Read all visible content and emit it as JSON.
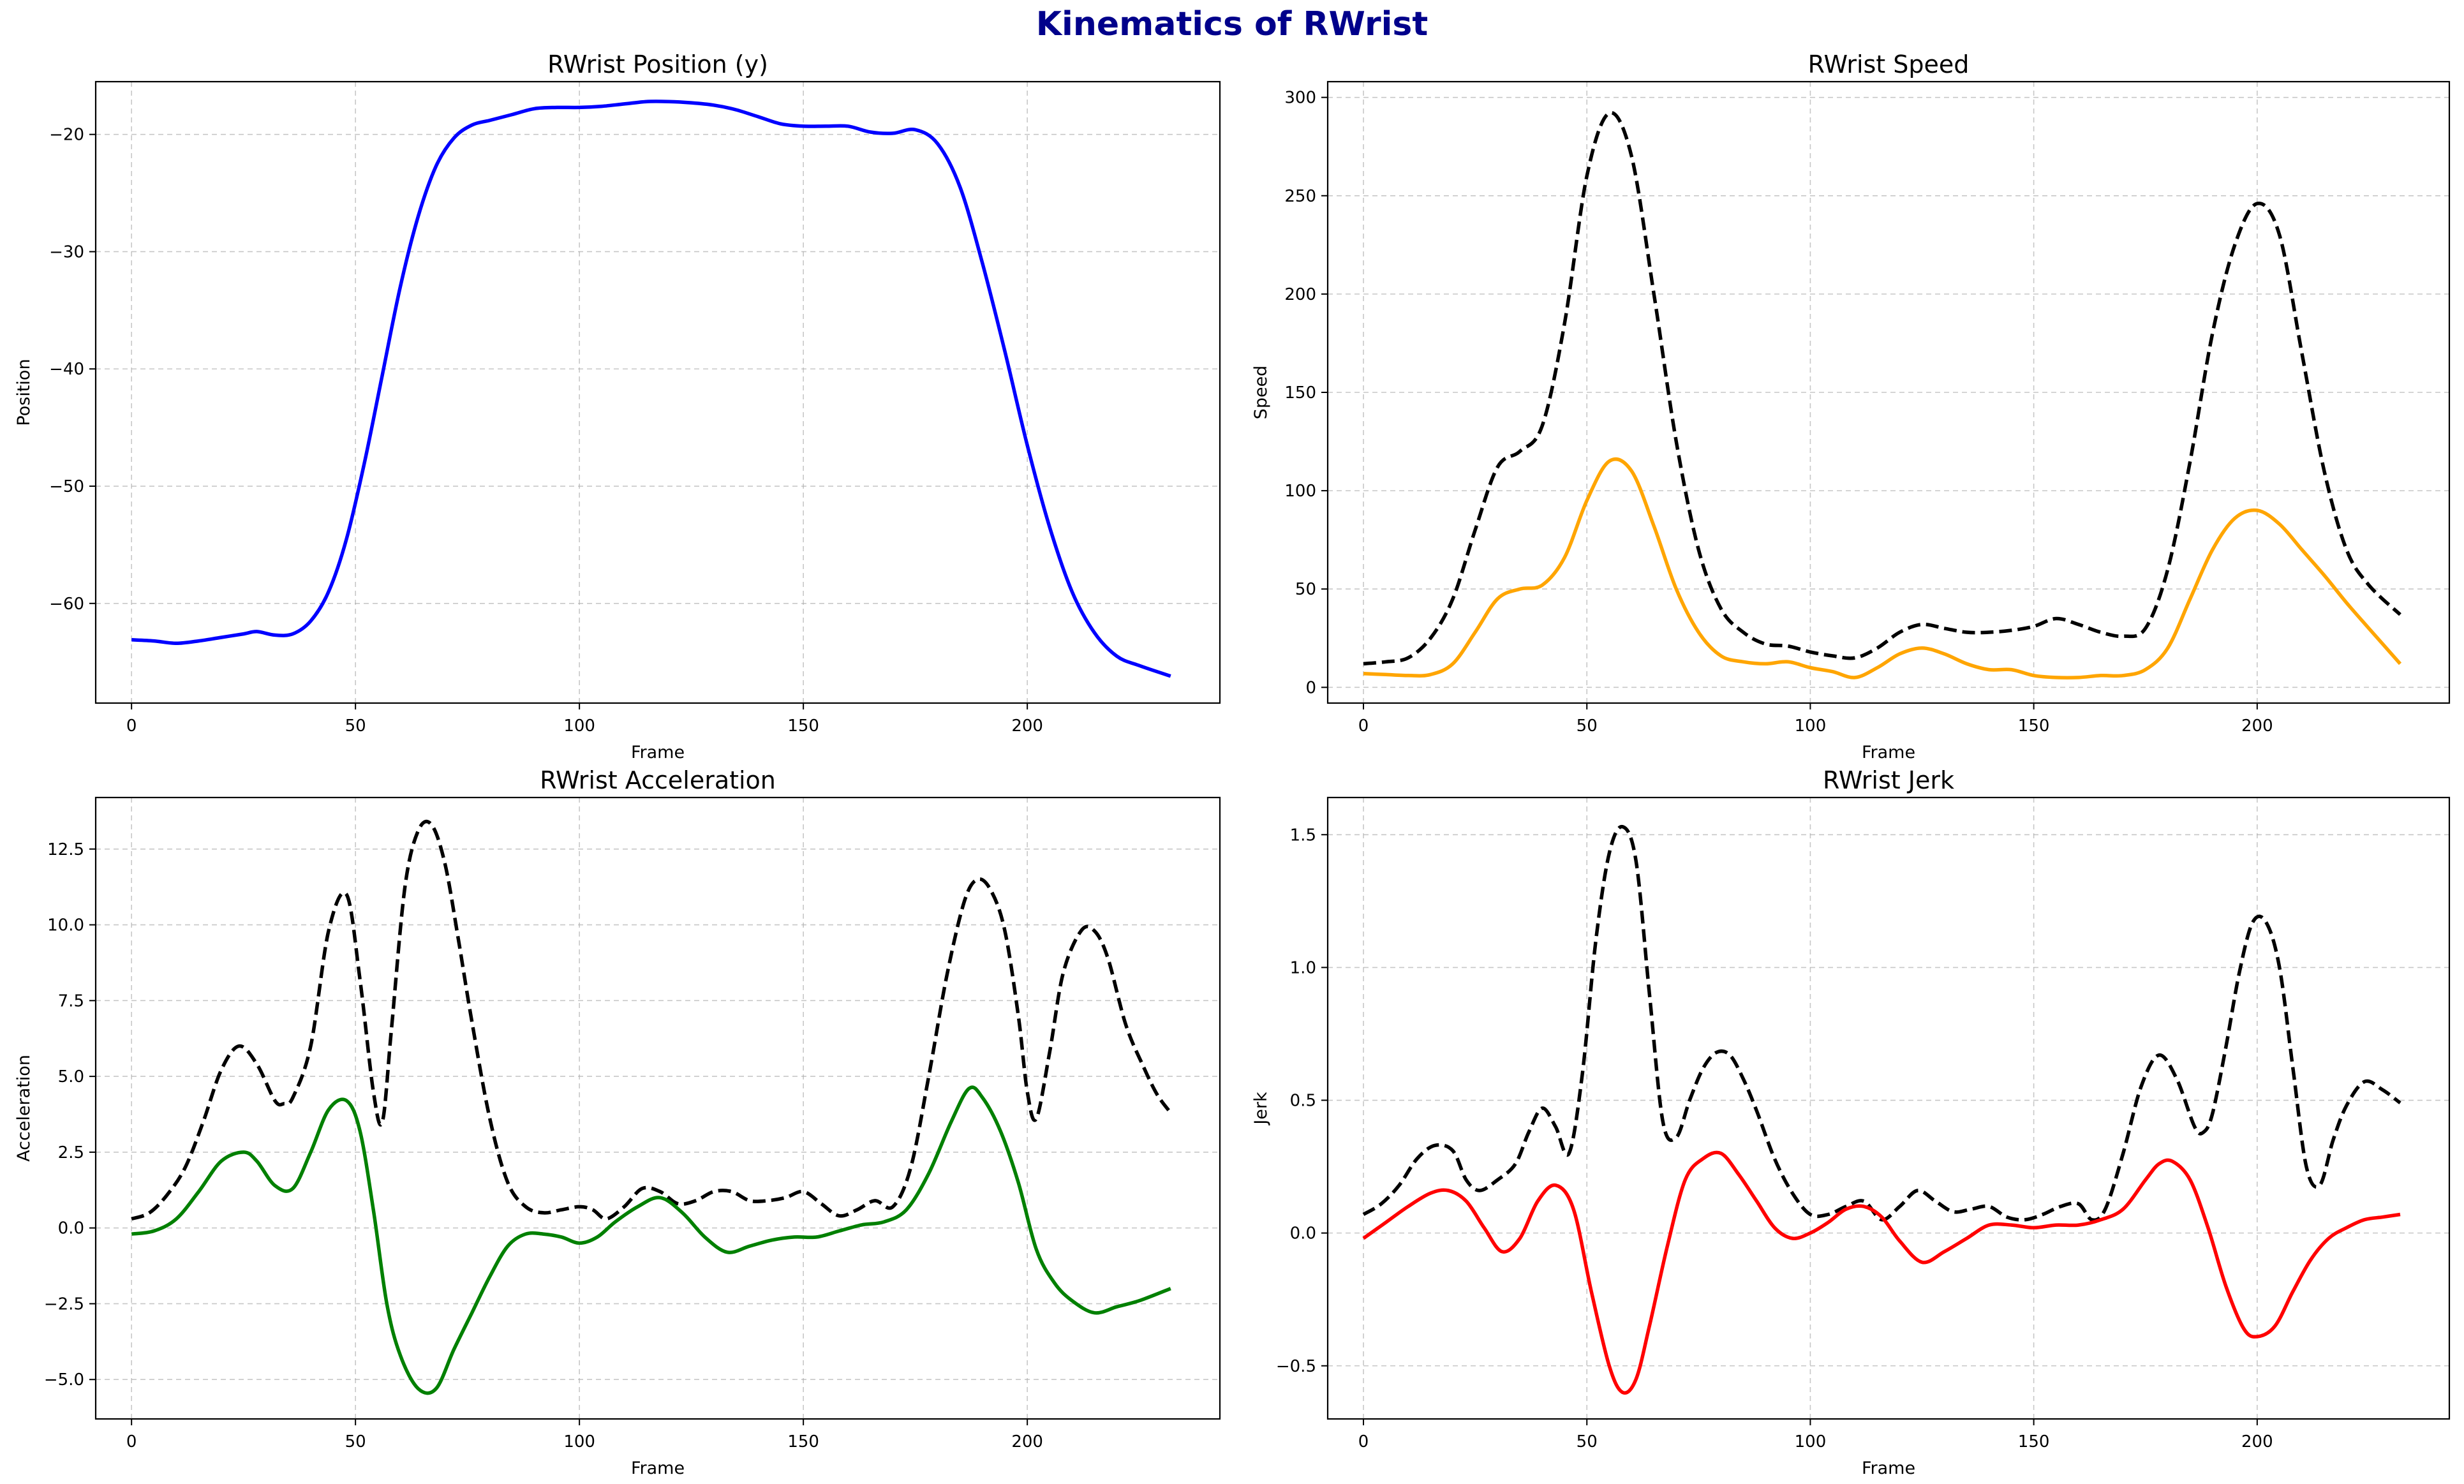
{
  "figure": {
    "suptitle": "Kinematics of RWrist",
    "suptitle_color": "#00008b"
  },
  "chart_data": [
    {
      "type": "line",
      "title": "RWrist Position (y)",
      "xlabel": "Frame",
      "ylabel": "Position",
      "xlim": [
        -8,
        243
      ],
      "ylim": [
        -68.5,
        -15.5
      ],
      "xticks": [
        0,
        50,
        100,
        150,
        200
      ],
      "yticks": [
        -60,
        -50,
        -40,
        -30,
        -20
      ],
      "grid": true,
      "series": [
        {
          "color": "#0000ff",
          "dashed": false,
          "x": [
            0,
            5,
            10,
            15,
            20,
            25,
            28,
            32,
            36,
            40,
            44,
            48,
            52,
            56,
            60,
            64,
            68,
            72,
            76,
            80,
            85,
            90,
            95,
            100,
            105,
            110,
            115,
            120,
            125,
            130,
            135,
            140,
            145,
            150,
            155,
            160,
            165,
            170,
            175,
            180,
            185,
            190,
            195,
            200,
            205,
            210,
            215,
            220,
            225,
            232
          ],
          "y": [
            -63.1,
            -63.2,
            -63.4,
            -63.2,
            -62.9,
            -62.6,
            -62.4,
            -62.7,
            -62.6,
            -61.5,
            -59,
            -54.5,
            -48,
            -40.5,
            -33,
            -27,
            -22.7,
            -20.3,
            -19.2,
            -18.8,
            -18.3,
            -17.8,
            -17.7,
            -17.7,
            -17.6,
            -17.4,
            -17.2,
            -17.2,
            -17.3,
            -17.5,
            -17.9,
            -18.5,
            -19.1,
            -19.3,
            -19.3,
            -19.3,
            -19.8,
            -19.9,
            -19.6,
            -20.8,
            -24.5,
            -31,
            -38.5,
            -46.5,
            -53.5,
            -59,
            -62.5,
            -64.5,
            -65.3,
            -66.2
          ]
        }
      ]
    },
    {
      "type": "line",
      "title": "RWrist Speed",
      "xlabel": "Frame",
      "ylabel": "Speed",
      "xlim": [
        -8,
        243
      ],
      "ylim": [
        -8,
        308
      ],
      "xticks": [
        0,
        50,
        100,
        150,
        200
      ],
      "yticks": [
        0,
        50,
        100,
        150,
        200,
        250,
        300
      ],
      "grid": true,
      "series": [
        {
          "color": "#000000",
          "dashed": true,
          "x": [
            0,
            5,
            10,
            15,
            20,
            25,
            30,
            35,
            40,
            45,
            50,
            55,
            60,
            65,
            70,
            75,
            80,
            85,
            90,
            95,
            100,
            105,
            110,
            115,
            120,
            125,
            130,
            135,
            140,
            145,
            150,
            155,
            160,
            165,
            170,
            175,
            180,
            185,
            190,
            195,
            200,
            205,
            210,
            215,
            220,
            225,
            232
          ],
          "y": [
            12,
            13,
            15,
            25,
            45,
            80,
            112,
            120,
            133,
            185,
            260,
            292,
            270,
            200,
            125,
            70,
            40,
            28,
            22,
            21,
            18,
            16,
            15,
            20,
            28,
            32,
            30,
            28,
            28,
            29,
            31,
            35,
            32,
            28,
            26,
            30,
            60,
            115,
            180,
            225,
            246,
            230,
            170,
            110,
            70,
            52,
            37
          ]
        },
        {
          "color": "#ffa500",
          "dashed": false,
          "x": [
            0,
            5,
            10,
            15,
            20,
            25,
            30,
            35,
            40,
            45,
            50,
            55,
            60,
            65,
            70,
            75,
            80,
            85,
            90,
            95,
            100,
            105,
            110,
            115,
            120,
            125,
            130,
            135,
            140,
            145,
            150,
            155,
            160,
            165,
            170,
            175,
            180,
            185,
            190,
            195,
            200,
            205,
            210,
            215,
            220,
            225,
            232
          ],
          "y": [
            7,
            6.5,
            6,
            6.5,
            12,
            28,
            45,
            50,
            52,
            66,
            95,
            115,
            110,
            82,
            50,
            28,
            16,
            13,
            12,
            13,
            10,
            8,
            5,
            10,
            17,
            20,
            17,
            12,
            9,
            9,
            6,
            5,
            5,
            6,
            6,
            9,
            20,
            45,
            70,
            86,
            90,
            83,
            70,
            57,
            43,
            30,
            12
          ]
        }
      ]
    },
    {
      "type": "line",
      "title": "RWrist Acceleration",
      "xlabel": "Frame",
      "ylabel": "Acceleration",
      "xlim": [
        -8,
        243
      ],
      "ylim": [
        -6.3,
        14.2
      ],
      "xticks": [
        0,
        50,
        100,
        150,
        200
      ],
      "yticks": [
        -5.0,
        -2.5,
        0.0,
        2.5,
        5.0,
        7.5,
        10.0,
        12.5
      ],
      "grid": true,
      "series": [
        {
          "color": "#000000",
          "dashed": true,
          "x": [
            0,
            4,
            8,
            12,
            16,
            20,
            24,
            28,
            32,
            34,
            36,
            40,
            44,
            48,
            51,
            54,
            56,
            58,
            61,
            64,
            67,
            70,
            73,
            76,
            80,
            84,
            88,
            92,
            96,
            100,
            103,
            106,
            110,
            114,
            118,
            122,
            126,
            130,
            134,
            138,
            142,
            146,
            150,
            154,
            158,
            162,
            166,
            170,
            174,
            178,
            182,
            186,
            189,
            192,
            195,
            198,
            200,
            202,
            205,
            208,
            212,
            215,
            218,
            222,
            226,
            229,
            232
          ],
          "y": [
            0.3,
            0.5,
            1.1,
            2,
            3.5,
            5.2,
            6,
            5.4,
            4.2,
            4.1,
            4.3,
            6,
            9.8,
            11,
            8.2,
            4.5,
            3.5,
            6.5,
            11.2,
            13.1,
            13.3,
            12,
            9.5,
            6.8,
            3.6,
            1.5,
            0.7,
            0.5,
            0.6,
            0.7,
            0.6,
            0.3,
            0.7,
            1.3,
            1.2,
            0.8,
            0.9,
            1.2,
            1.2,
            0.9,
            0.9,
            1,
            1.2,
            0.8,
            0.4,
            0.6,
            0.9,
            0.7,
            2,
            5,
            8.3,
            10.8,
            11.5,
            11.1,
            9.8,
            7,
            4.5,
            3.6,
            5.8,
            8.4,
            9.8,
            9.8,
            8.9,
            6.7,
            5.3,
            4.4,
            3.8
          ]
        },
        {
          "color": "#008000",
          "dashed": false,
          "x": [
            0,
            5,
            10,
            15,
            20,
            25,
            28,
            32,
            36,
            40,
            44,
            48,
            51,
            54,
            57,
            60,
            64,
            68,
            72,
            76,
            80,
            84,
            88,
            92,
            96,
            100,
            104,
            108,
            113,
            118,
            123,
            128,
            133,
            138,
            143,
            148,
            153,
            158,
            163,
            168,
            173,
            178,
            183,
            187,
            190,
            194,
            198,
            202,
            206,
            210,
            215,
            220,
            225,
            232
          ],
          "y": [
            -0.2,
            -0.1,
            0.3,
            1.2,
            2.2,
            2.5,
            2.2,
            1.4,
            1.3,
            2.5,
            3.9,
            4.2,
            3.2,
            0.6,
            -2.5,
            -4.2,
            -5.3,
            -5.3,
            -4,
            -2.8,
            -1.6,
            -0.6,
            -0.2,
            -0.2,
            -0.3,
            -0.5,
            -0.3,
            0.2,
            0.7,
            1,
            0.5,
            -0.3,
            -0.8,
            -0.6,
            -0.4,
            -0.3,
            -0.3,
            -0.1,
            0.1,
            0.2,
            0.6,
            1.8,
            3.5,
            4.6,
            4.3,
            3.2,
            1.5,
            -0.7,
            -1.8,
            -2.4,
            -2.8,
            -2.6,
            -2.4,
            -2
          ]
        }
      ]
    },
    {
      "type": "line",
      "title": "RWrist Jerk",
      "xlabel": "Frame",
      "ylabel": "Jerk",
      "xlim": [
        -8,
        243
      ],
      "ylim": [
        -0.7,
        1.64
      ],
      "xticks": [
        0,
        50,
        100,
        150,
        200
      ],
      "yticks": [
        -0.5,
        0.0,
        0.5,
        1.0,
        1.5
      ],
      "grid": true,
      "series": [
        {
          "color": "#000000",
          "dashed": true,
          "x": [
            0,
            4,
            8,
            12,
            16,
            20,
            23,
            26,
            30,
            34,
            37,
            40,
            43,
            46,
            49,
            52,
            55,
            58,
            61,
            64,
            67,
            70,
            73,
            76,
            79,
            82,
            85,
            88,
            92,
            96,
            100,
            104,
            108,
            112,
            116,
            120,
            124,
            128,
            132,
            136,
            140,
            144,
            148,
            152,
            156,
            160,
            163,
            166,
            170,
            174,
            178,
            182,
            186,
            188,
            190,
            193,
            196,
            199,
            202,
            205,
            208,
            211,
            214,
            217,
            220,
            224,
            228,
            232
          ],
          "y": [
            0.07,
            0.11,
            0.18,
            0.28,
            0.33,
            0.31,
            0.2,
            0.16,
            0.2,
            0.26,
            0.38,
            0.47,
            0.4,
            0.3,
            0.6,
            1.1,
            1.43,
            1.53,
            1.4,
            0.9,
            0.42,
            0.36,
            0.5,
            0.62,
            0.68,
            0.67,
            0.58,
            0.46,
            0.28,
            0.15,
            0.07,
            0.07,
            0.1,
            0.12,
            0.05,
            0.1,
            0.16,
            0.12,
            0.08,
            0.09,
            0.1,
            0.06,
            0.05,
            0.07,
            0.1,
            0.11,
            0.05,
            0.09,
            0.3,
            0.55,
            0.67,
            0.58,
            0.4,
            0.38,
            0.45,
            0.7,
            0.98,
            1.17,
            1.17,
            1.0,
            0.62,
            0.25,
            0.18,
            0.35,
            0.48,
            0.57,
            0.54,
            0.49
          ]
        },
        {
          "color": "#ff0000",
          "dashed": false,
          "x": [
            0,
            5,
            10,
            15,
            19,
            23,
            27,
            31,
            35,
            39,
            43,
            47,
            51,
            55,
            58,
            61,
            64,
            68,
            72,
            76,
            80,
            84,
            88,
            92,
            96,
            100,
            104,
            108,
            112,
            116,
            120,
            125,
            130,
            135,
            140,
            145,
            150,
            155,
            160,
            165,
            170,
            175,
            178,
            181,
            185,
            189,
            193,
            197,
            200,
            204,
            208,
            212,
            216,
            220,
            224,
            228,
            232
          ],
          "y": [
            -0.02,
            0.04,
            0.1,
            0.15,
            0.16,
            0.12,
            0.02,
            -0.07,
            -0.02,
            0.12,
            0.18,
            0.09,
            -0.22,
            -0.5,
            -0.6,
            -0.55,
            -0.35,
            -0.05,
            0.2,
            0.28,
            0.3,
            0.22,
            0.12,
            0.02,
            -0.02,
            0,
            0.04,
            0.09,
            0.1,
            0.06,
            -0.03,
            -0.11,
            -0.07,
            -0.02,
            0.03,
            0.03,
            0.02,
            0.03,
            0.03,
            0.05,
            0.09,
            0.2,
            0.26,
            0.27,
            0.2,
            0.02,
            -0.2,
            -0.36,
            -0.39,
            -0.35,
            -0.22,
            -0.1,
            -0.02,
            0.02,
            0.05,
            0.06,
            0.07
          ]
        }
      ]
    }
  ]
}
